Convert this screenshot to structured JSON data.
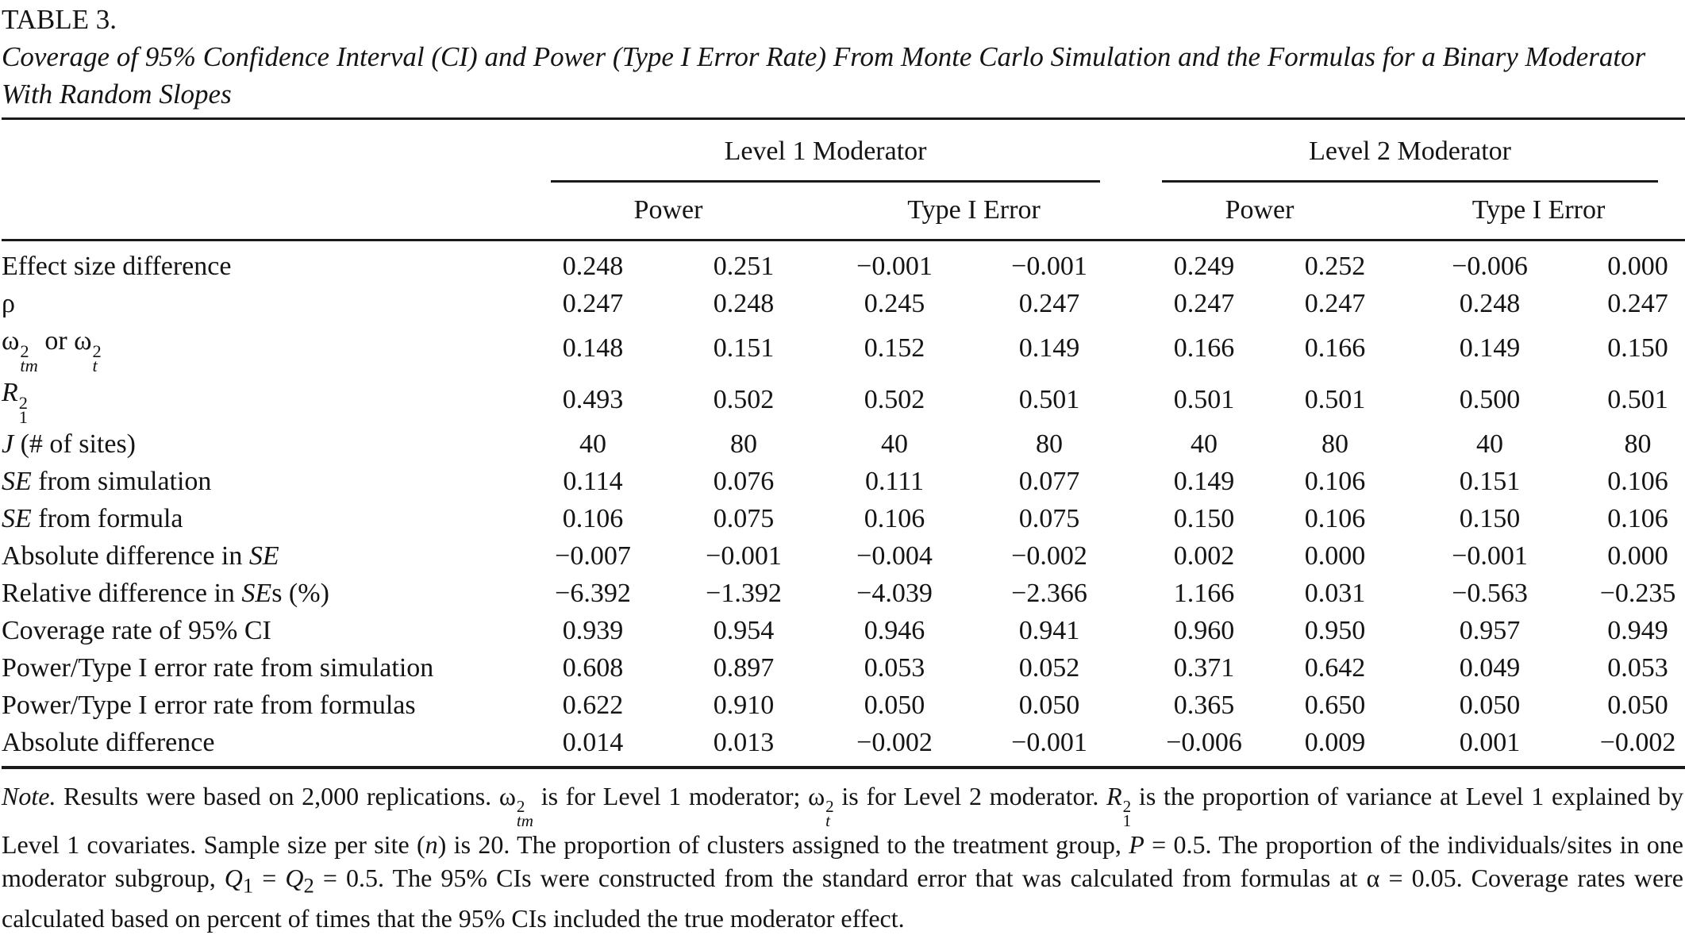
{
  "colors": {
    "background": "#ffffff",
    "text": "#141414",
    "rule": "#1a1a1a"
  },
  "table_label": "TABLE 3.",
  "caption": "Coverage of 95% Confidence Interval (CI) and Power (Type I Error Rate) From Monte Carlo Simulation and the Formulas for a Binary Moderator With Random Slopes",
  "header": {
    "groups": [
      "Level 1 Moderator",
      "Level 2 Moderator"
    ],
    "sub": [
      "Power",
      "Type I Error",
      "Power",
      "Type I Error"
    ]
  },
  "rows": [
    {
      "label_html": "Effect size difference",
      "values": [
        "0.248",
        "0.251",
        "−0.001",
        "−0.001",
        "0.249",
        "0.252",
        "−0.006",
        "0.000"
      ]
    },
    {
      "label_html": "ρ",
      "values": [
        "0.247",
        "0.248",
        "0.245",
        "0.247",
        "0.247",
        "0.247",
        "0.248",
        "0.247"
      ]
    },
    {
      "label_html": "ω<span class=\"ss\"><span>2</span><span class=\"sit\">tm</span></span> or ω<span class=\"ss\"><span>2</span><span class=\"sit\">t</span></span>",
      "values": [
        "0.148",
        "0.151",
        "0.152",
        "0.149",
        "0.166",
        "0.166",
        "0.149",
        "0.150"
      ]
    },
    {
      "label_html": "<i>R</i><span class=\"ss\"><span>2</span><span>1</span></span>",
      "values": [
        "0.493",
        "0.502",
        "0.502",
        "0.501",
        "0.501",
        "0.501",
        "0.500",
        "0.501"
      ]
    },
    {
      "label_html": "<i>J</i> (# of sites)",
      "values": [
        "40",
        "80",
        "40",
        "80",
        "40",
        "80",
        "40",
        "80"
      ]
    },
    {
      "label_html": "<i>SE</i> from simulation",
      "values": [
        "0.114",
        "0.076",
        "0.111",
        "0.077",
        "0.149",
        "0.106",
        "0.151",
        "0.106"
      ]
    },
    {
      "label_html": "<i>SE</i> from formula",
      "values": [
        "0.106",
        "0.075",
        "0.106",
        "0.075",
        "0.150",
        "0.106",
        "0.150",
        "0.106"
      ]
    },
    {
      "label_html": "Absolute difference in <i>SE</i>",
      "values": [
        "−0.007",
        "−0.001",
        "−0.004",
        "−0.002",
        "0.002",
        "0.000",
        "−0.001",
        "0.000"
      ]
    },
    {
      "label_html": "Relative difference in <i>SE</i>s (%)",
      "values": [
        "−6.392",
        "−1.392",
        "−4.039",
        "−2.366",
        "1.166",
        "0.031",
        "−0.563",
        "−0.235"
      ]
    },
    {
      "label_html": "Coverage rate of 95% CI",
      "values": [
        "0.939",
        "0.954",
        "0.946",
        "0.941",
        "0.960",
        "0.950",
        "0.957",
        "0.949"
      ]
    },
    {
      "label_html": "Power/Type I error rate from simulation",
      "values": [
        "0.608",
        "0.897",
        "0.053",
        "0.052",
        "0.371",
        "0.642",
        "0.049",
        "0.053"
      ]
    },
    {
      "label_html": "Power/Type I error rate from formulas",
      "values": [
        "0.622",
        "0.910",
        "0.050",
        "0.050",
        "0.365",
        "0.650",
        "0.050",
        "0.050"
      ]
    },
    {
      "label_html": "Absolute difference",
      "values": [
        "0.014",
        "0.013",
        "−0.002",
        "−0.001",
        "−0.006",
        "0.009",
        "0.001",
        "−0.002"
      ]
    }
  ],
  "note_html": "<i>Note.</i> Results were based on 2,000 replications. ω<span class=\"ss\"><span>2</span><span class=\"sit\">tm</span></span> is for Level 1 moderator; ω<span class=\"ss\"><span>2</span><span class=\"sit\">t</span></span> is for Level 2 moderator. <i>R</i><span class=\"ss\"><span>2</span><span>1</span></span> is the proportion of variance at Level 1 explained by Level 1 covariates. Sample size per site (<i>n</i>) is 20. The proportion of clusters assigned to the treatment group, <i>P</i> = 0.5. The proportion of the individuals/sites in one moderator subgroup, <i>Q</i><sub>1</sub> = <i>Q</i><sub>2</sub> = 0.5. The 95% CIs were constructed from the standard error that was calculated from formulas at α = 0.05. Coverage rates were calculated based on percent of times that the 95% CIs included the true moderator effect."
}
